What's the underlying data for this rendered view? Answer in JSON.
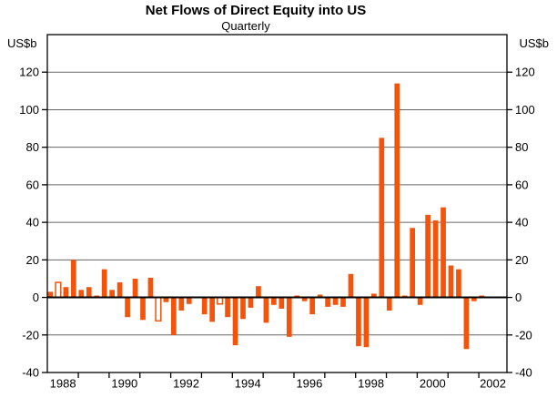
{
  "chart_data": {
    "type": "bar",
    "title": "Net Flows of Direct Equity into US",
    "subtitle": "Quarterly",
    "frequency": "quarterly",
    "unit": "US$b",
    "ylim": [
      -40,
      140
    ],
    "grid": true,
    "bar_color": "#F4530B",
    "grid_color": "#666666",
    "zero_line_color": "#000000",
    "series": [
      {
        "year": 1988,
        "values": [
          3,
          8,
          5.5,
          20
        ]
      },
      {
        "year": 1989,
        "values": [
          4,
          5.5,
          1,
          15
        ]
      },
      {
        "year": 1990,
        "values": [
          4,
          8,
          -10.5,
          10
        ]
      },
      {
        "year": 1991,
        "values": [
          -12,
          10.5,
          -12.5,
          -2.5
        ]
      },
      {
        "year": 1992,
        "values": [
          -20,
          -7,
          -3.5,
          0
        ]
      },
      {
        "year": 1993,
        "values": [
          -9,
          -13,
          -3.5,
          -10.5
        ]
      },
      {
        "year": 1994,
        "values": [
          -25.5,
          -11.5,
          -5.5,
          6
        ]
      },
      {
        "year": 1995,
        "values": [
          -13.5,
          -4,
          -6,
          -21
        ]
      },
      {
        "year": 1996,
        "values": [
          1,
          -2,
          -9,
          1.5
        ]
      },
      {
        "year": 1997,
        "values": [
          -5,
          -4,
          -5,
          12.5
        ]
      },
      {
        "year": 1998,
        "values": [
          -26,
          -26.5,
          2,
          85
        ]
      },
      {
        "year": 1999,
        "values": [
          -7,
          114,
          1,
          37
        ]
      },
      {
        "year": 2000,
        "values": [
          -4,
          44,
          41,
          48
        ]
      },
      {
        "year": 2001,
        "values": [
          17,
          15,
          -27.5,
          -2
        ]
      },
      {
        "year": 2002,
        "values": [
          1
        ]
      }
    ],
    "hollow_quarters": [
      "1988Q2",
      "1991Q3",
      "1993Q3"
    ]
  },
  "axis": {
    "left_unit": "US$b",
    "right_unit": "US$b",
    "y_ticks": [
      120,
      100,
      80,
      60,
      40,
      20,
      0,
      -20,
      -40
    ],
    "x_labels": [
      "1988",
      "1990",
      "1992",
      "1994",
      "1996",
      "1998",
      "2000",
      "2002"
    ]
  }
}
